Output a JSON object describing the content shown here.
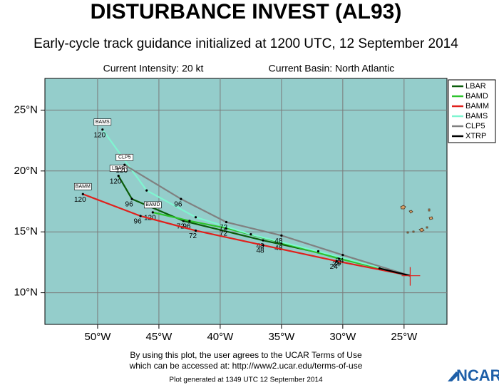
{
  "chart_data": {
    "type": "line",
    "title": "DISTURBANCE INVEST (AL93)",
    "subtitle": "Early-cycle track guidance initialized at 1200 UTC, 12 September 2014",
    "current_intensity": "Current Intensity: 20 kt",
    "current_basin": "Current Basin: North Atlantic",
    "xlim": [
      -54.3,
      -21.5
    ],
    "ylim": [
      7.4,
      27.6
    ],
    "xticks": [
      {
        "value": -50,
        "label": "50°W"
      },
      {
        "value": -45,
        "label": "45°W"
      },
      {
        "value": -40,
        "label": "40°W"
      },
      {
        "value": -35,
        "label": "35°W"
      },
      {
        "value": -30,
        "label": "30°W"
      },
      {
        "value": -25,
        "label": "25°W"
      }
    ],
    "yticks": [
      {
        "value": 10,
        "label": "10°N"
      },
      {
        "value": 15,
        "label": "15°N"
      },
      {
        "value": 20,
        "label": "20°N"
      },
      {
        "value": 25,
        "label": "25°N"
      }
    ],
    "grid": true,
    "series": [
      {
        "name": "LBAR",
        "color": "#0b5d0b",
        "x": [
          -24.5,
          -30.2,
          -36.5,
          -43.0,
          -47.2,
          -48.3
        ],
        "y": [
          11.4,
          12.9,
          14.3,
          15.9,
          17.7,
          19.6
        ],
        "hour_labels": [
          null,
          "24",
          "48",
          "72",
          "96",
          "120"
        ]
      },
      {
        "name": "BAMD",
        "color": "#2ec42e",
        "x": [
          -24.5,
          -30.3,
          -35.0,
          -39.5,
          -42.5,
          -45.5
        ],
        "y": [
          11.4,
          12.8,
          14.1,
          15.3,
          15.9,
          16.6
        ],
        "hour_labels": [
          null,
          "24",
          "48",
          "72",
          "96",
          "120"
        ]
      },
      {
        "name": "BAMM",
        "color": "#e0201c",
        "x": [
          -24.5,
          -30.5,
          -36.5,
          -42.0,
          -46.5,
          -51.2
        ],
        "y": [
          11.4,
          12.6,
          13.9,
          15.1,
          16.3,
          18.1
        ],
        "hour_labels": [
          null,
          "24",
          "48",
          "72",
          "96",
          "120"
        ]
      },
      {
        "name": "BAMS",
        "color": "#7ff5d0",
        "x": [
          -24.5,
          -32.0,
          -37.5,
          -42.0,
          -46.0,
          -49.6
        ],
        "y": [
          11.4,
          13.4,
          14.8,
          16.2,
          18.4,
          23.4
        ],
        "hour_labels": [
          null,
          null,
          null,
          null,
          null,
          "120"
        ]
      },
      {
        "name": "CLP5",
        "color": "#808080",
        "x": [
          -24.5,
          -30.0,
          -35.0,
          -39.5,
          -43.2,
          -47.8
        ],
        "y": [
          11.4,
          13.1,
          14.7,
          15.8,
          17.7,
          20.5
        ],
        "hour_labels": [
          null,
          "24",
          "48",
          "72",
          "96",
          "120"
        ]
      },
      {
        "name": "XTRP",
        "color": "#000000",
        "x": [
          -24.5,
          -27.0
        ],
        "y": [
          11.4,
          12.0
        ],
        "hour_labels": [
          null,
          null
        ]
      }
    ],
    "disclaimer_1": "By using this plot, the user agrees to the UCAR Terms of Use",
    "disclaimer_2": "which can be accessed at: http://www2.ucar.edu/terms-of-use",
    "generated": "Plot generated at 1349 UTC   12 September 2014",
    "logo": "NCAR"
  }
}
